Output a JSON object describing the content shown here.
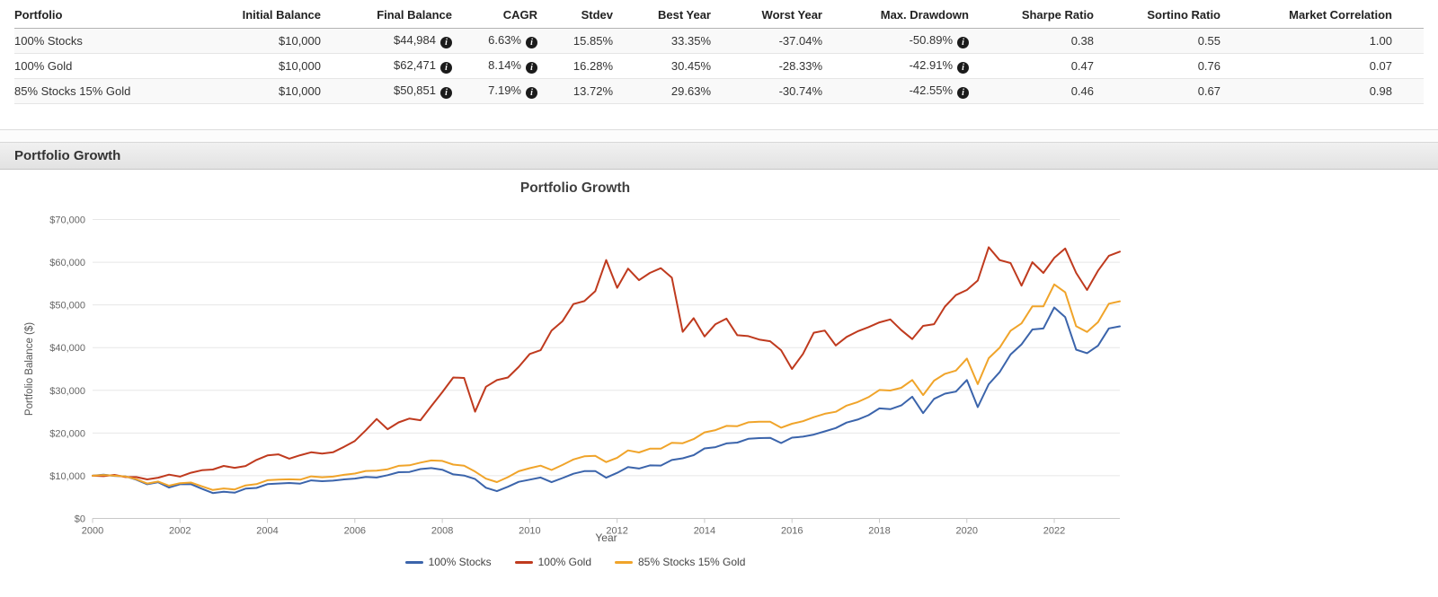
{
  "summary_table": {
    "columns": [
      "Portfolio",
      "Initial Balance",
      "Final Balance",
      "CAGR",
      "Stdev",
      "Best Year",
      "Worst Year",
      "Max. Drawdown",
      "Sharpe Ratio",
      "Sortino Ratio",
      "Market Correlation"
    ],
    "info_icon_columns": [
      2,
      3,
      7
    ],
    "rows": [
      [
        "100% Stocks",
        "$10,000",
        "$44,984",
        "6.63%",
        "15.85%",
        "33.35%",
        "-37.04%",
        "-50.89%",
        "0.38",
        "0.55",
        "1.00"
      ],
      [
        "100% Gold",
        "$10,000",
        "$62,471",
        "8.14%",
        "16.28%",
        "30.45%",
        "-28.33%",
        "-42.91%",
        "0.47",
        "0.76",
        "0.07"
      ],
      [
        "85% Stocks 15% Gold",
        "$10,000",
        "$50,851",
        "7.19%",
        "13.72%",
        "29.63%",
        "-30.74%",
        "-42.55%",
        "0.46",
        "0.67",
        "0.98"
      ]
    ]
  },
  "section_header": {
    "title": "Portfolio Growth"
  },
  "chart_data": {
    "type": "line",
    "title": "Portfolio Growth",
    "xlabel": "Year",
    "ylabel": "Portfolio Balance ($)",
    "x_range": [
      2000,
      2023.5
    ],
    "y_range": [
      0,
      70000
    ],
    "grid": true,
    "legend_position": "bottom",
    "x_ticks": [
      {
        "value": 2000,
        "label": "2000"
      },
      {
        "value": 2002,
        "label": "2002"
      },
      {
        "value": 2004,
        "label": "2004"
      },
      {
        "value": 2006,
        "label": "2006"
      },
      {
        "value": 2008,
        "label": "2008"
      },
      {
        "value": 2010,
        "label": "2010"
      },
      {
        "value": 2012,
        "label": "2012"
      },
      {
        "value": 2014,
        "label": "2014"
      },
      {
        "value": 2016,
        "label": "2016"
      },
      {
        "value": 2018,
        "label": "2018"
      },
      {
        "value": 2020,
        "label": "2020"
      },
      {
        "value": 2022,
        "label": "2022"
      }
    ],
    "y_ticks": [
      {
        "value": 0,
        "label": "$0"
      },
      {
        "value": 10000,
        "label": "$10,000"
      },
      {
        "value": 20000,
        "label": "$20,000"
      },
      {
        "value": 30000,
        "label": "$30,000"
      },
      {
        "value": 40000,
        "label": "$40,000"
      },
      {
        "value": 50000,
        "label": "$50,000"
      },
      {
        "value": 60000,
        "label": "$60,000"
      },
      {
        "value": 70000,
        "label": "$70,000"
      }
    ],
    "x": [
      2000,
      2000.25,
      2000.5,
      2000.75,
      2001,
      2001.25,
      2001.5,
      2001.75,
      2002,
      2002.25,
      2002.5,
      2002.75,
      2003,
      2003.25,
      2003.5,
      2003.75,
      2004,
      2004.25,
      2004.5,
      2004.75,
      2005,
      2005.25,
      2005.5,
      2005.75,
      2006,
      2006.25,
      2006.5,
      2006.75,
      2007,
      2007.25,
      2007.5,
      2007.75,
      2008,
      2008.25,
      2008.5,
      2008.75,
      2009,
      2009.25,
      2009.5,
      2009.75,
      2010,
      2010.25,
      2010.5,
      2010.75,
      2011,
      2011.25,
      2011.5,
      2011.75,
      2012,
      2012.25,
      2012.5,
      2012.75,
      2013,
      2013.25,
      2013.5,
      2013.75,
      2014,
      2014.25,
      2014.5,
      2014.75,
      2015,
      2015.25,
      2015.5,
      2015.75,
      2016,
      2016.25,
      2016.5,
      2016.75,
      2017,
      2017.25,
      2017.5,
      2017.75,
      2018,
      2018.25,
      2018.5,
      2018.75,
      2019,
      2019.25,
      2019.5,
      2019.75,
      2020,
      2020.25,
      2020.5,
      2020.75,
      2021,
      2021.25,
      2021.5,
      2021.75,
      2022,
      2022.25,
      2022.5,
      2022.75,
      2023,
      2023.25,
      2023.5
    ],
    "series": [
      {
        "name": "100% Stocks",
        "color": "#3B64AB",
        "values": [
          10000,
          10230,
          9960,
          9860,
          9090,
          8010,
          8480,
          7240,
          8010,
          8030,
          6960,
          5950,
          6240,
          6040,
          6970,
          7150,
          8030,
          8170,
          8310,
          8160,
          8910,
          8720,
          8840,
          9150,
          9340,
          9730,
          9590,
          10140,
          10820,
          10890,
          11570,
          11800,
          11410,
          10330,
          10050,
          9220,
          7190,
          6400,
          7420,
          8580,
          9090,
          9580,
          8490,
          9450,
          10460,
          11080,
          11090,
          9540,
          10680,
          12030,
          11690,
          12430,
          12390,
          13690,
          14090,
          14830,
          16400,
          16700,
          17570,
          17770,
          18650,
          18820,
          18870,
          17660,
          18910,
          19160,
          19630,
          20390,
          21170,
          22450,
          23140,
          24180,
          25780,
          25580,
          26460,
          28500,
          24650,
          28010,
          29210,
          29700,
          32420,
          26070,
          31430,
          34240,
          38380,
          40750,
          44240,
          44490,
          49400,
          47120,
          39530,
          38700,
          40440,
          44500,
          44984
        ]
      },
      {
        "name": "100% Gold",
        "color": "#BF3A1E",
        "values": [
          10000,
          9900,
          10200,
          9700,
          9690,
          9150,
          9550,
          10250,
          9800,
          10700,
          11280,
          11450,
          12300,
          11850,
          12280,
          13700,
          14750,
          15000,
          14000,
          14800,
          15500,
          15180,
          15500,
          16750,
          18150,
          20650,
          23300,
          20900,
          22500,
          23400,
          23000,
          26300,
          29550,
          33000,
          32900,
          25000,
          30830,
          32400,
          33000,
          35500,
          38500,
          39400,
          44000,
          46200,
          50200,
          50900,
          53200,
          60500,
          54000,
          58500,
          55800,
          57500,
          58600,
          56400,
          43700,
          46900,
          42600,
          45500,
          46800,
          42900,
          42700,
          41900,
          41500,
          39400,
          35000,
          38500,
          43500,
          44000,
          40500,
          42500,
          43800,
          44800,
          45900,
          46600,
          44100,
          42000,
          45100,
          45500,
          49600,
          52300,
          53500,
          55700,
          63500,
          60500,
          59800,
          54500,
          60000,
          57500,
          61000,
          63200,
          57500,
          53500,
          58000,
          61500,
          62471
        ]
      },
      {
        "name": "85% Stocks 15% Gold",
        "color": "#F0A42A",
        "values": [
          10000,
          10180,
          10000,
          9840,
          9180,
          8170,
          8640,
          7670,
          8270,
          8400,
          7530,
          6670,
          7030,
          6800,
          7730,
          8020,
          8960,
          9110,
          9160,
          9090,
          9860,
          9650,
          9790,
          10210,
          10520,
          11110,
          11210,
          11530,
          12310,
          12450,
          13070,
          13580,
          13470,
          12620,
          12340,
          10970,
          9320,
          8520,
          9670,
          11060,
          11770,
          12350,
          11360,
          12520,
          13820,
          14540,
          14650,
          13210,
          14220,
          15930,
          15440,
          16340,
          16340,
          17710,
          17620,
          18580,
          20160,
          20680,
          21680,
          21610,
          22520,
          22630,
          22650,
          21250,
          22180,
          22760,
          23710,
          24510,
          24970,
          26430,
          27250,
          28390,
          30090,
          29950,
          30590,
          32410,
          28890,
          32270,
          33870,
          34620,
          37440,
          31440,
          37520,
          39960,
          43950,
          45670,
          49670,
          49660,
          54810,
          52950,
          45000,
          43690,
          45960,
          50290,
          50851
        ]
      }
    ]
  }
}
